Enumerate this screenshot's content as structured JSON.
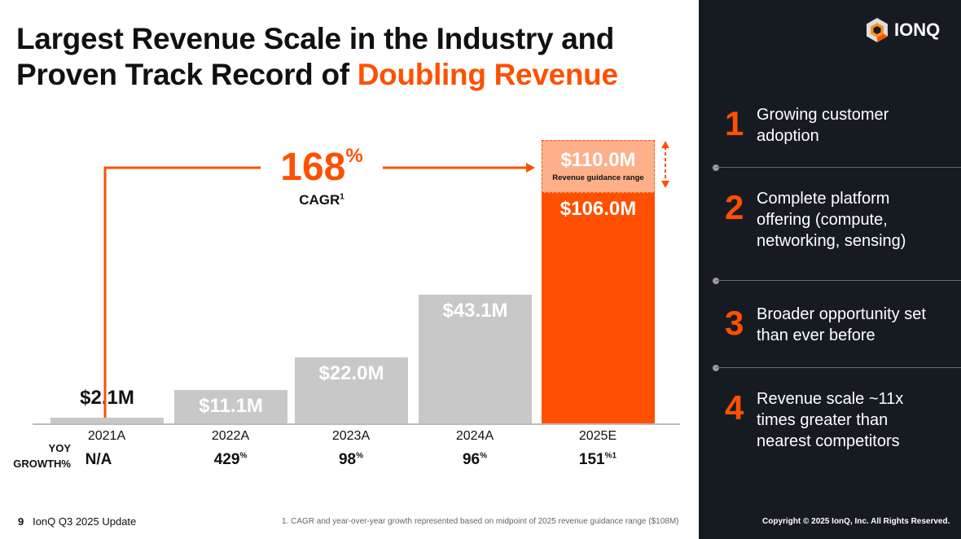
{
  "title": {
    "line1": "Largest Revenue Scale in the Industry and",
    "line2_prefix": "Proven Track Record of ",
    "line2_highlight": "Doubling Revenue"
  },
  "logo": {
    "text": "IONQ"
  },
  "colors": {
    "accent": "#fe5000",
    "bar": "#c8c8c8",
    "guidance": "#fdb08a",
    "panel": "#161b22"
  },
  "cagr": {
    "value": "168",
    "unit": "%",
    "label": "CAGR",
    "footnote_mark": "1"
  },
  "guidance": {
    "label": "$110.0M",
    "caption": "Revenue guidance range"
  },
  "chart_data": {
    "type": "bar",
    "categories": [
      "2021A",
      "2022A",
      "2023A",
      "2024A",
      "2025E"
    ],
    "values": [
      2.1,
      11.1,
      22.0,
      43.1,
      106.0
    ],
    "labels": [
      "$2.1M",
      "$11.1M",
      "$22.0M",
      "$43.1M",
      "$106.0M"
    ],
    "guidance_high": 110.0,
    "yoy_label": "YOY",
    "growth_label": "GROWTH%",
    "growth": [
      {
        "value": "N/A",
        "sup": ""
      },
      {
        "value": "429",
        "sup": "%"
      },
      {
        "value": "98",
        "sup": "%"
      },
      {
        "value": "96",
        "sup": "%"
      },
      {
        "value": "151",
        "sup": "%1"
      }
    ]
  },
  "highlights": [
    {
      "num": "1",
      "text": "Growing customer adoption"
    },
    {
      "num": "2",
      "text": "Complete platform offering (compute, networking, sensing)"
    },
    {
      "num": "3",
      "text": "Broader opportunity set than ever before"
    },
    {
      "num": "4",
      "text": "Revenue scale ~11x times greater than nearest competitors"
    }
  ],
  "footer": {
    "page": "9",
    "deck": "IonQ Q3 2025 Update",
    "footnote": "1.  CAGR and year-over-year growth represented based on midpoint of 2025 revenue guidance range ($108M)",
    "copyright": "Copyright © 2025 IonQ, Inc. All Rights Reserved."
  }
}
